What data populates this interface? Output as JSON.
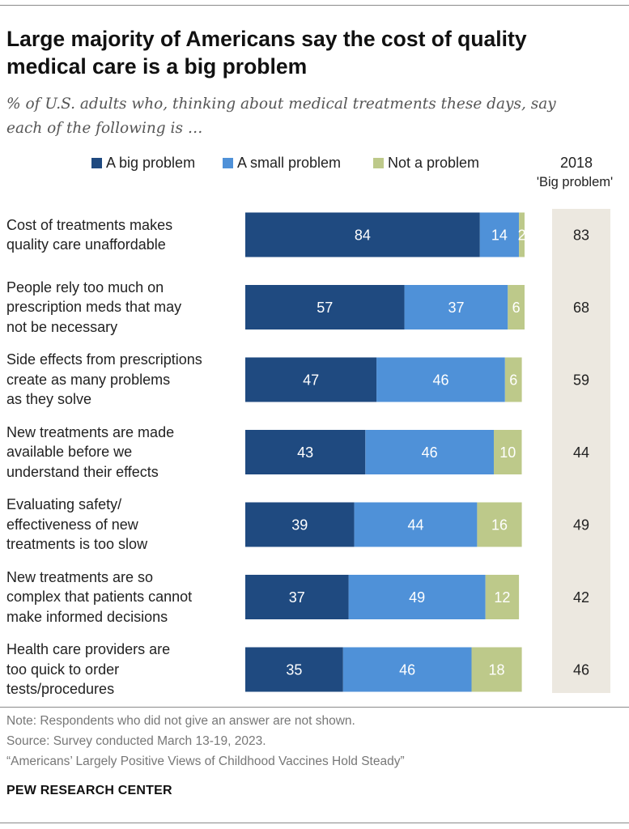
{
  "title_line1": "Large majority of Americans say the cost of quality",
  "title_line2": "medical care is a big problem",
  "subtitle_line1": "% of U.S. adults who, thinking about medical treatments these days, say",
  "subtitle_line2": "each of the following is …",
  "legend": [
    {
      "label": "A big problem",
      "color": "#1f4a80"
    },
    {
      "label": "A small problem",
      "color": "#4f91d8"
    },
    {
      "label": "Not a problem",
      "color": "#bdc98a"
    }
  ],
  "comparison_header": "2018",
  "comparison_subheader": "'Big problem'",
  "chart_data": {
    "type": "bar",
    "orientation": "horizontal",
    "stacked": true,
    "categories": [
      [
        "Cost of treatments makes",
        "quality care unaffordable"
      ],
      [
        "People rely too much on",
        "prescription meds that may",
        "not be necessary"
      ],
      [
        "Side effects from prescriptions",
        "create as many problems",
        "as they solve"
      ],
      [
        "New treatments are made",
        "available before we",
        "understand their effects"
      ],
      [
        "Evaluating safety/",
        "effectiveness of new",
        "treatments is too slow"
      ],
      [
        "New treatments are so",
        "complex that patients cannot",
        "make informed decisions"
      ],
      [
        "Health care providers are",
        "too quick to order",
        "tests/procedures"
      ]
    ],
    "series": [
      {
        "name": "A big problem",
        "values": [
          84,
          57,
          47,
          43,
          39,
          37,
          35
        ],
        "color": "#1f4a80"
      },
      {
        "name": "A small problem",
        "values": [
          14,
          37,
          46,
          46,
          44,
          49,
          46
        ],
        "color": "#4f91d8"
      },
      {
        "name": "Not a problem",
        "values": [
          2,
          6,
          6,
          10,
          16,
          12,
          18
        ],
        "color": "#bdc98a"
      }
    ],
    "comparison_2018_big_problem": [
      83,
      68,
      59,
      44,
      49,
      42,
      46
    ],
    "xlim": [
      0,
      100
    ],
    "legend_position": "top"
  },
  "footer": {
    "note": "Note: Respondents who did not give an answer are not shown.",
    "source": "Source: Survey conducted March 13-19, 2023.",
    "report": "“Americans’ Largely Positive Views of Childhood Vaccines Hold Steady”"
  },
  "brand": "PEW RESEARCH CENTER"
}
